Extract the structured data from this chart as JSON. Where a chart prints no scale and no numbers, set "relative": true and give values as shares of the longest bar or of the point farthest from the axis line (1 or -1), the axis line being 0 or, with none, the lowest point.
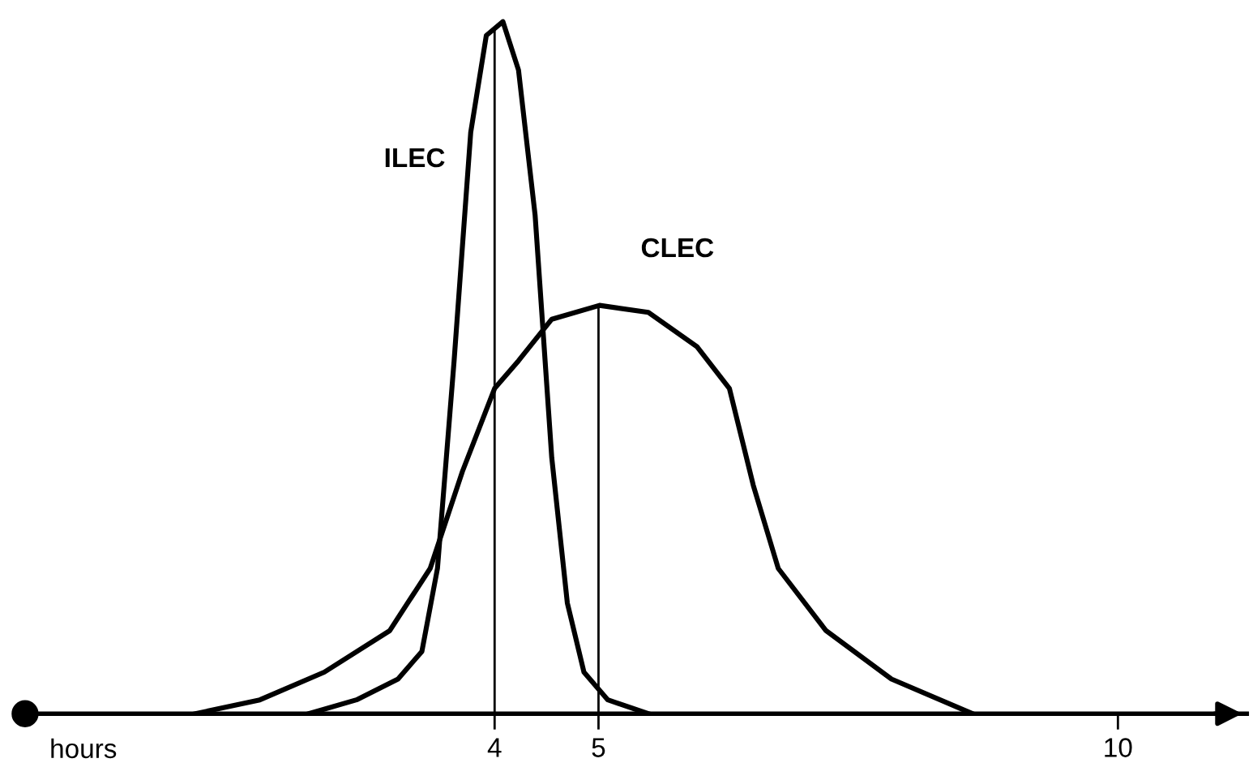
{
  "chart_data": {
    "type": "line",
    "relative": true,
    "xlabel": "hours",
    "xlim": [
      -0.52,
      11.24
    ],
    "xticks": [
      4,
      5,
      10
    ],
    "grid": false,
    "legend": false,
    "marker": "none",
    "line_style": "solid",
    "series": [
      {
        "name": "ILEC",
        "color": "#000000",
        "x": [
          2.21,
          2.67,
          3.07,
          3.3,
          3.45,
          3.61,
          3.77,
          3.92,
          4.08,
          4.23,
          4.39,
          4.55,
          4.7,
          4.86,
          5.09,
          5.48
        ],
        "values": [
          0,
          0.02,
          0.05,
          0.09,
          0.21,
          0.51,
          0.84,
          0.98,
          1,
          0.93,
          0.72,
          0.37,
          0.16,
          0.06,
          0.02,
          0
        ]
      },
      {
        "name": "CLEC",
        "color": "#000000",
        "x": [
          1.12,
          1.74,
          2.36,
          2.99,
          3.38,
          3.69,
          4.0,
          4.23,
          4.55,
          5.01,
          5.48,
          5.95,
          6.26,
          6.49,
          6.73,
          7.19,
          7.82,
          8.6
        ],
        "values": [
          0,
          0.02,
          0.06,
          0.12,
          0.21,
          0.35,
          0.47,
          0.51,
          0.57,
          0.59,
          0.58,
          0.53,
          0.47,
          0.33,
          0.21,
          0.12,
          0.05,
          0
        ]
      }
    ],
    "ref_lines": [
      {
        "axis": "x",
        "value": 4,
        "color": "#000000"
      },
      {
        "axis": "x",
        "value": 5,
        "color": "#000000"
      }
    ]
  }
}
